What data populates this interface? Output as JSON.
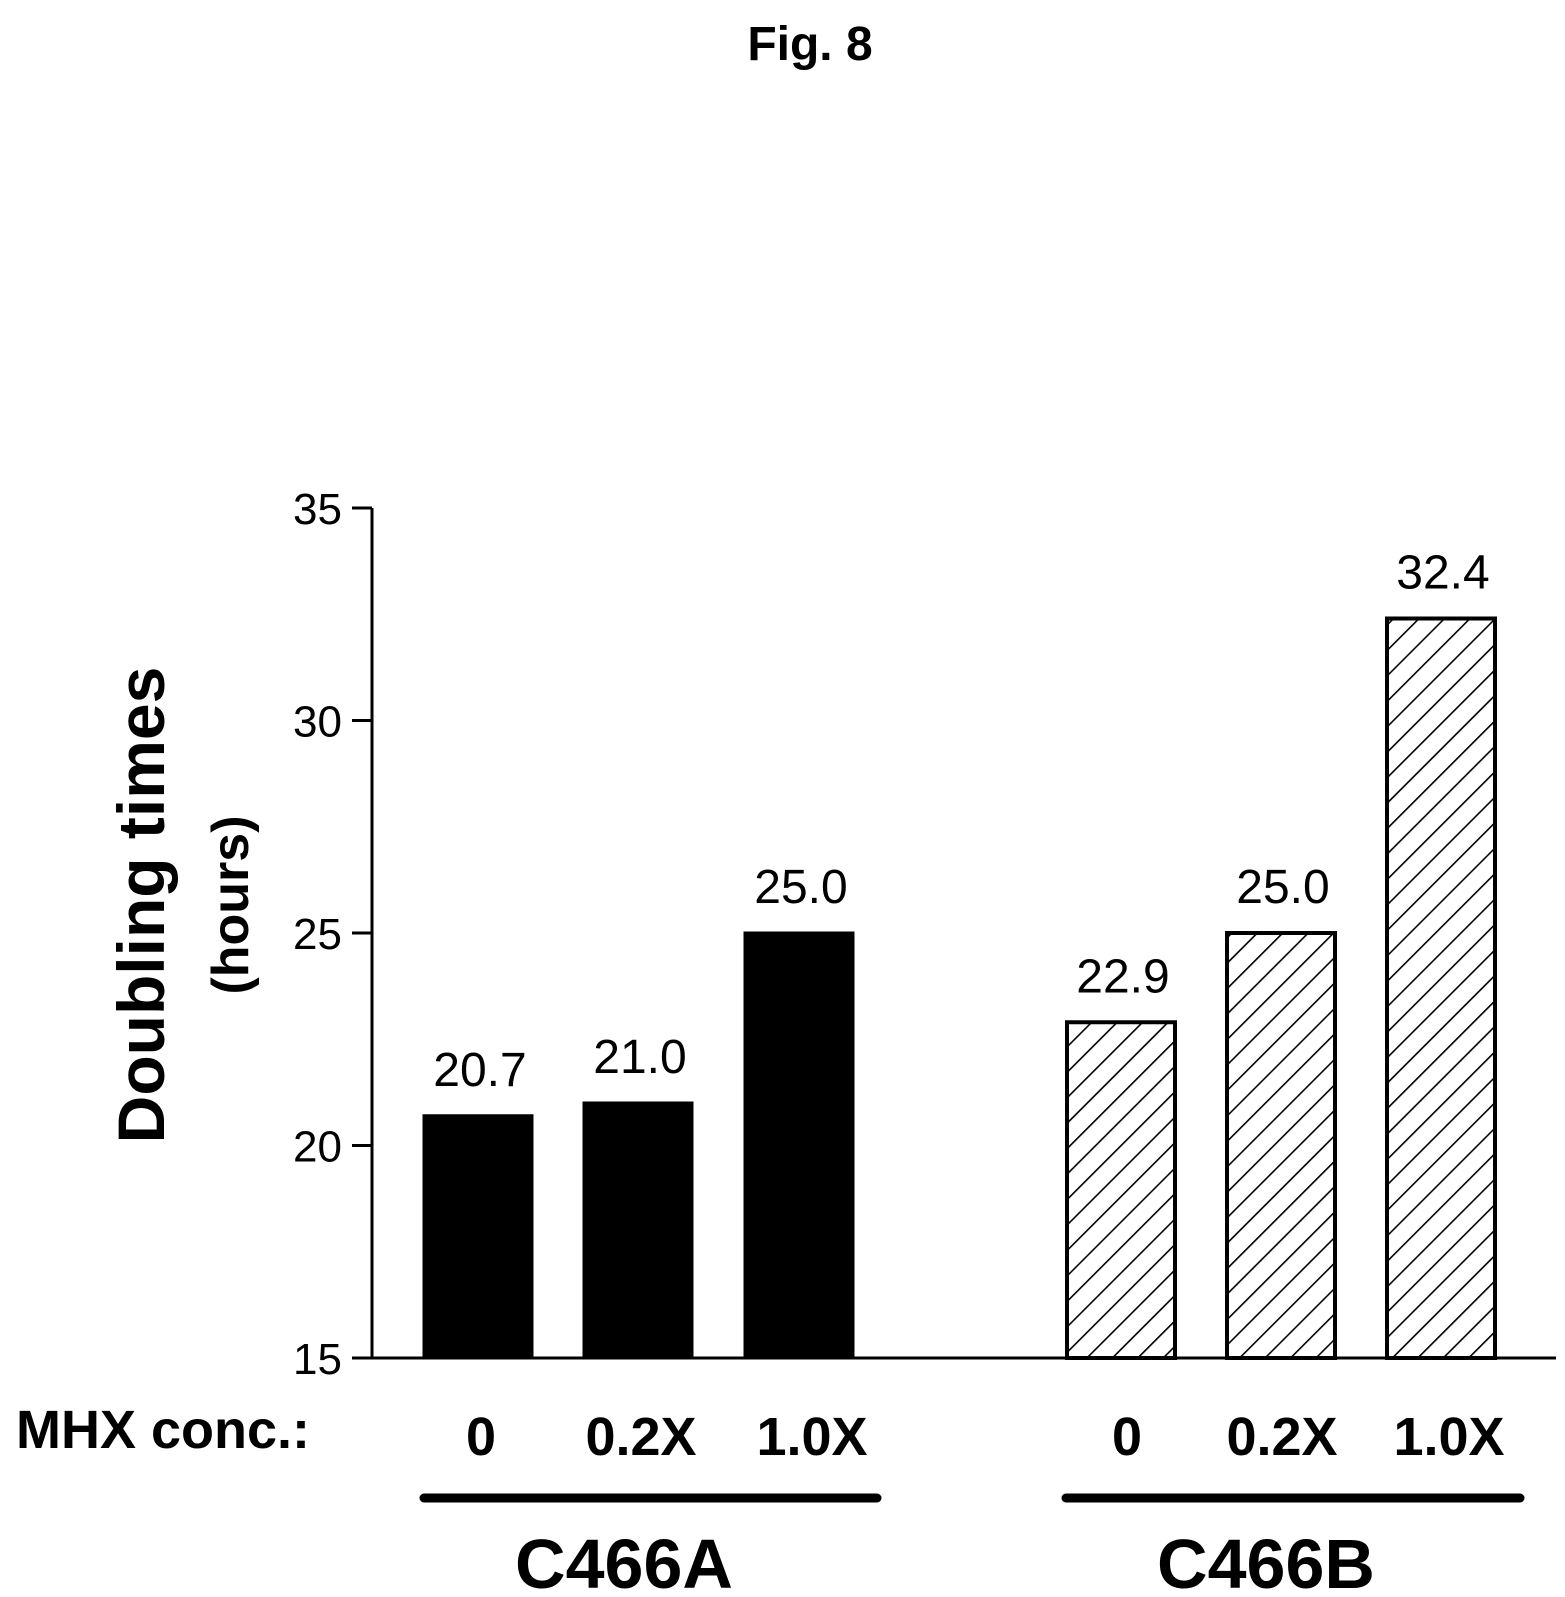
{
  "figure": {
    "title": "Fig. 8"
  },
  "chart_data": {
    "type": "bar",
    "xlabel": "MHX conc.:",
    "ylabel": "Doubling times",
    "ylabel_sub": "(hours)",
    "ylim": [
      15,
      35
    ],
    "yticks": [
      15,
      20,
      25,
      30,
      35
    ],
    "grid": false,
    "legend": "none",
    "groups": [
      {
        "name": "C466A",
        "fill": "solid",
        "color": "#000000",
        "categories": [
          "0",
          "0.2X",
          "1.0X"
        ],
        "values": [
          20.7,
          21.0,
          25.0
        ],
        "data_labels": [
          "20.7",
          "21.0",
          "25.0"
        ]
      },
      {
        "name": "C466B",
        "fill": "hatched",
        "color": "#000000",
        "categories": [
          "0",
          "0.2X",
          "1.0X"
        ],
        "values": [
          22.9,
          25.0,
          32.4
        ],
        "data_labels": [
          "22.9",
          "25.0",
          "32.4"
        ]
      }
    ]
  }
}
